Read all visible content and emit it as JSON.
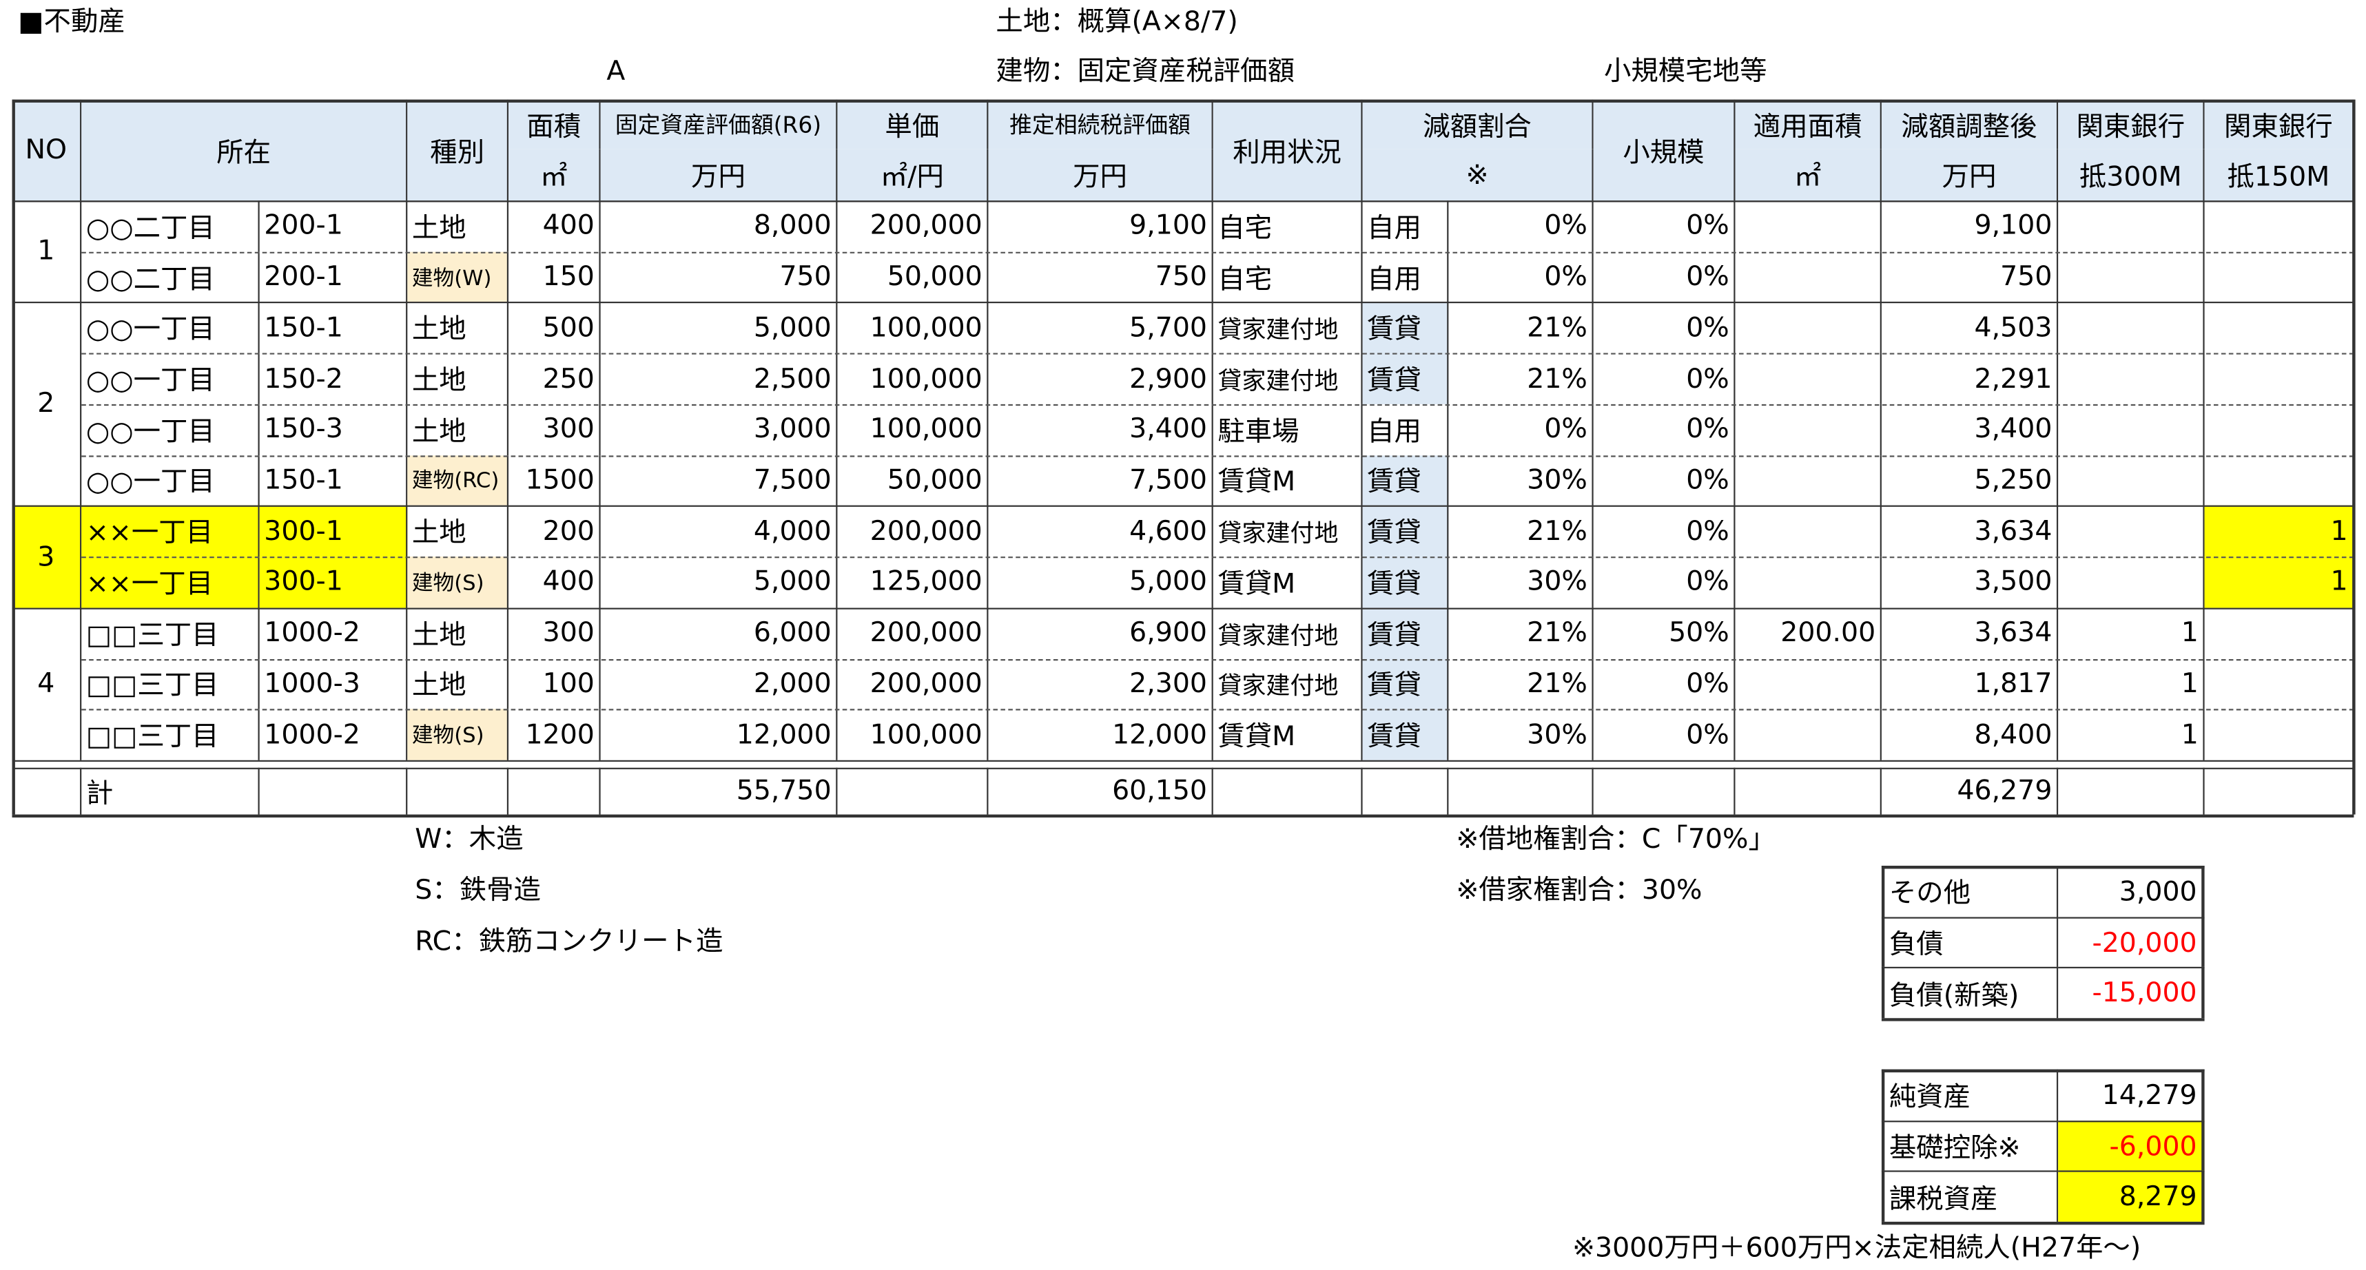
{
  "header": {
    "title": "■不動産",
    "land_note": "土地：概算(A×8/7)",
    "mark_a": "A",
    "building_note": "建物：固定資産税評価額",
    "small_note": "小規模宅地等"
  },
  "table": {
    "columns": [
      {
        "label": "NO"
      },
      {
        "label": "所在"
      },
      {
        "label": "種別"
      },
      {
        "label": "面積",
        "unit": "㎡"
      },
      {
        "label": "固定資産評価額(R6)",
        "unit": "万円"
      },
      {
        "label": "単価",
        "unit": "㎡/円"
      },
      {
        "label": "推定相続税評価額",
        "unit": "万円"
      },
      {
        "label": "利用状況"
      },
      {
        "label": "減額割合",
        "unit": "※"
      },
      {
        "label": "小規模"
      },
      {
        "label": "適用面積",
        "unit": "㎡"
      },
      {
        "label": "減額調整後",
        "unit": "万円"
      },
      {
        "label": "関東銀行",
        "unit": "抵300M"
      },
      {
        "label": "関東銀行",
        "unit": "抵150M"
      }
    ],
    "groups": [
      {
        "no": "1",
        "rows": [
          [
            "○○二丁目",
            "200-1",
            "土地",
            "400",
            "8,000",
            "200,000",
            "9,100",
            "自宅",
            "自用",
            "0%",
            "0%",
            null,
            "9,100",
            null,
            null
          ],
          [
            "○○二丁目",
            "200-1",
            "建物(W)",
            "150",
            "750",
            "50,000",
            "750",
            "自宅",
            "自用",
            "0%",
            "0%",
            null,
            "750",
            null,
            null
          ]
        ]
      },
      {
        "no": "2",
        "rows": [
          [
            "○○一丁目",
            "150-1",
            "土地",
            "500",
            "5,000",
            "100,000",
            "5,700",
            "貸家建付地",
            "賃貸",
            "21%",
            "0%",
            null,
            "4,503",
            null,
            null
          ],
          [
            "○○一丁目",
            "150-2",
            "土地",
            "250",
            "2,500",
            "100,000",
            "2,900",
            "貸家建付地",
            "賃貸",
            "21%",
            "0%",
            null,
            "2,291",
            null,
            null
          ],
          [
            "○○一丁目",
            "150-3",
            "土地",
            "300",
            "3,000",
            "100,000",
            "3,400",
            "駐車場",
            "自用",
            "0%",
            "0%",
            null,
            "3,400",
            null,
            null
          ],
          [
            "○○一丁目",
            "150-1",
            "建物(RC)",
            "1500",
            "7,500",
            "50,000",
            "7,500",
            "賃貸M",
            "賃貸",
            "30%",
            "0%",
            null,
            "5,250",
            null,
            null
          ]
        ]
      },
      {
        "no": "3",
        "rows": [
          [
            "××一丁目",
            "300-1",
            "土地",
            "200",
            "4,000",
            "200,000",
            "4,600",
            "貸家建付地",
            "賃貸",
            "21%",
            "0%",
            null,
            "3,634",
            null,
            "1"
          ],
          [
            "××一丁目",
            "300-1",
            "建物(S)",
            "400",
            "5,000",
            "125,000",
            "5,000",
            "賃貸M",
            "賃貸",
            "30%",
            "0%",
            null,
            "3,500",
            null,
            "1"
          ]
        ]
      },
      {
        "no": "4",
        "rows": [
          [
            "□□三丁目",
            "1000-2",
            "土地",
            "300",
            "6,000",
            "200,000",
            "6,900",
            "貸家建付地",
            "賃貸",
            "21%",
            "50%",
            "200.00",
            "3,634",
            "1",
            null
          ],
          [
            "□□三丁目",
            "1000-3",
            "土地",
            "100",
            "2,000",
            "200,000",
            "2,300",
            "貸家建付地",
            "賃貸",
            "21%",
            "0%",
            null,
            "1,817",
            "1",
            null
          ],
          [
            "□□三丁目",
            "1000-2",
            "建物(S)",
            "1200",
            "12,000",
            "100,000",
            "12,000",
            "賃貸M",
            "賃貸",
            "30%",
            "0%",
            null,
            "8,400",
            "1",
            null
          ]
        ]
      }
    ],
    "total": [
      "計",
      null,
      null,
      null,
      "55,750",
      null,
      "60,150",
      null,
      null,
      null,
      null,
      null,
      "46,279",
      null,
      null
    ]
  },
  "legend": [
    "W：木造",
    "S：鉄骨造",
    "RC：鉄筋コンクリート造"
  ],
  "notes": [
    "※借地権割合：C「70%」",
    "※借家権割合：30%"
  ],
  "summary": [
    [
      [
        "その他",
        "3,000"
      ],
      [
        "負債",
        "-20,000"
      ],
      [
        "負債(新築)",
        "-15,000"
      ]
    ],
    [
      [
        "純資産",
        "14,279"
      ],
      [
        "基礎控除※",
        "-6,000"
      ],
      [
        "課税資産",
        "8,279"
      ]
    ]
  ],
  "footnote": "※3000万円＋600万円×法定相続人(H27年～)"
}
